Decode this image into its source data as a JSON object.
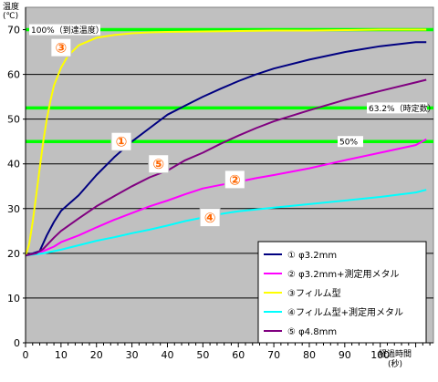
{
  "chart_data": {
    "type": "line",
    "title": "",
    "ylabel": "温度\n(℃)",
    "xlabel": "経過時間\n(秒)",
    "xlim": [
      0,
      115
    ],
    "ylim": [
      0,
      75
    ],
    "x_ticks": [
      0,
      10,
      20,
      30,
      40,
      50,
      60,
      70,
      80,
      90,
      100
    ],
    "y_ticks": [
      0,
      10,
      20,
      30,
      40,
      50,
      60,
      70
    ],
    "grid": true,
    "legend_position": "bottom-right",
    "series": [
      {
        "name": "① φ3.2mm",
        "color": "#000080",
        "x": [
          0,
          2,
          4,
          6,
          8,
          10,
          15,
          20,
          25,
          30,
          35,
          40,
          45,
          50,
          55,
          60,
          65,
          70,
          80,
          90,
          100,
          110,
          113
        ],
        "y": [
          19.5,
          20,
          20.5,
          24,
          27,
          29.5,
          33,
          37.5,
          41.5,
          45,
          48,
          51,
          53,
          55,
          56.8,
          58.5,
          60,
          61.3,
          63.3,
          65,
          66.3,
          67.2,
          67.2
        ]
      },
      {
        "name": "② φ3.2mm+測定用メタル",
        "color": "#ff00ff",
        "x": [
          0,
          3,
          5,
          8,
          10,
          15,
          20,
          25,
          30,
          35,
          40,
          45,
          50,
          55,
          60,
          65,
          70,
          80,
          90,
          100,
          110,
          113
        ],
        "y": [
          19.5,
          20,
          20.5,
          21.5,
          22.5,
          24,
          25.8,
          27.5,
          29,
          30.5,
          31.8,
          33.2,
          34.5,
          35.3,
          36,
          36.8,
          37.5,
          39,
          40.8,
          42.5,
          44.2,
          45.5
        ]
      },
      {
        "name": "③フィルム型",
        "color": "#ffff00",
        "x": [
          0,
          1,
          2,
          3,
          4,
          5,
          6,
          7,
          8,
          10,
          12,
          15,
          20,
          25,
          30,
          35,
          40,
          50,
          60,
          70,
          80,
          90,
          100,
          110,
          113
        ],
        "y": [
          19.5,
          22,
          27,
          33,
          39,
          45,
          50,
          54,
          57.5,
          61.5,
          64.2,
          66.5,
          68.2,
          68.8,
          69.2,
          69.4,
          69.5,
          69.6,
          69.7,
          69.8,
          69.8,
          69.9,
          70,
          70,
          70
        ]
      },
      {
        "name": "④フィルム型+測定用メタル",
        "color": "#00ffff",
        "x": [
          0,
          5,
          10,
          15,
          20,
          25,
          30,
          35,
          40,
          45,
          50,
          55,
          60,
          65,
          70,
          80,
          90,
          100,
          110,
          113
        ],
        "y": [
          19.5,
          20,
          20.8,
          21.8,
          22.8,
          23.6,
          24.5,
          25.3,
          26.2,
          27.2,
          28,
          28.8,
          29.4,
          29.8,
          30.2,
          31,
          31.8,
          32.6,
          33.6,
          34.2
        ]
      },
      {
        "name": "⑤ φ4.8mm",
        "color": "#800080",
        "x": [
          0,
          3,
          5,
          8,
          10,
          15,
          20,
          25,
          30,
          35,
          40,
          45,
          50,
          55,
          60,
          65,
          70,
          80,
          90,
          100,
          110,
          113
        ],
        "y": [
          19.5,
          20,
          21,
          23.5,
          25,
          27.8,
          30.5,
          32.8,
          35,
          37,
          38.5,
          40.8,
          42.5,
          44.5,
          46.3,
          48,
          49.5,
          52,
          54.3,
          56.3,
          58.2,
          58.8
        ]
      }
    ],
    "reference_lines": [
      {
        "label": "100%（到達温度）",
        "y": 70,
        "color": "#00ff00"
      },
      {
        "label": "63.2%（時定数）",
        "y": 52.5,
        "color": "#00ff00"
      },
      {
        "label": "50%",
        "y": 45,
        "color": "#00ff00"
      }
    ],
    "markers": [
      {
        "text": "③",
        "x": 10,
        "y": 66,
        "color": "#ff6600"
      },
      {
        "text": "①",
        "x": 27,
        "y": 45,
        "color": "#ff6600"
      },
      {
        "text": "⑤",
        "x": 37.5,
        "y": 40,
        "color": "#ff6600"
      },
      {
        "text": "②",
        "x": 59,
        "y": 36.5,
        "color": "#ff6600"
      },
      {
        "text": "④",
        "x": 52,
        "y": 28,
        "color": "#ff6600"
      }
    ]
  }
}
